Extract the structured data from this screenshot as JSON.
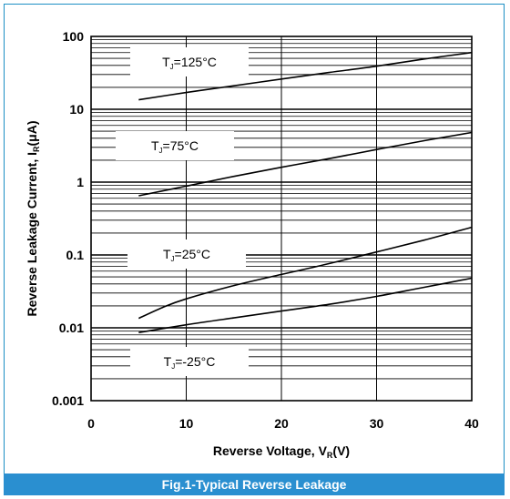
{
  "chart_data": {
    "type": "line",
    "caption": "Fig.1-Typical  Reverse Leakage",
    "xlabel": {
      "main": "Reverse  Voltage, V",
      "sub": "R",
      "tail": "(V)"
    },
    "ylabel": {
      "main": "Reverse  Leakage Current, I",
      "sub": "R",
      "tail": "(μA)"
    },
    "x_ticks": [
      "0",
      "10",
      "20",
      "30",
      "40"
    ],
    "y_ticks": [
      "0.001",
      "0.01",
      "0.1",
      "1",
      "10",
      "100"
    ],
    "xlim": [
      0,
      40
    ],
    "ylim": [
      0.001,
      100
    ],
    "y_scale": "log",
    "grid": true,
    "series": [
      {
        "name": {
          "main": "T",
          "sub": "J",
          "tail": "=125°C"
        },
        "x": [
          5,
          10,
          15,
          20,
          25,
          30,
          35,
          40
        ],
        "y": [
          13.5,
          17,
          21,
          26,
          32,
          39,
          49,
          60
        ]
      },
      {
        "name": {
          "main": "T",
          "sub": "J",
          "tail": "=75°C"
        },
        "x": [
          5,
          10,
          15,
          20,
          25,
          30,
          35,
          40
        ],
        "y": [
          0.65,
          0.88,
          1.2,
          1.6,
          2.1,
          2.8,
          3.7,
          4.8
        ]
      },
      {
        "name": {
          "main": "T",
          "sub": "J",
          "tail": "=25°C"
        },
        "x": [
          5,
          7.5,
          10,
          15,
          20,
          25,
          30,
          35,
          40
        ],
        "y": [
          0.0135,
          0.019,
          0.025,
          0.038,
          0.054,
          0.076,
          0.11,
          0.16,
          0.24
        ]
      },
      {
        "name": {
          "main": "T",
          "sub": "J",
          "tail": "=-25°C"
        },
        "x": [
          5,
          10,
          15,
          20,
          25,
          30,
          35,
          40
        ],
        "y": [
          0.0086,
          0.011,
          0.0137,
          0.017,
          0.021,
          0.027,
          0.036,
          0.048
        ]
      }
    ]
  }
}
